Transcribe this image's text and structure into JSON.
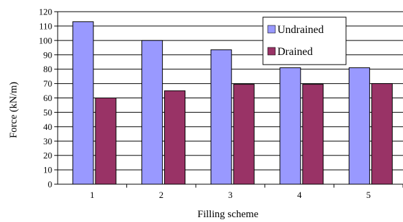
{
  "chart_data": {
    "type": "bar",
    "categories": [
      "1",
      "2",
      "3",
      "4",
      "5"
    ],
    "series": [
      {
        "name": "Undrained",
        "values": [
          113,
          100,
          93.5,
          81,
          81
        ],
        "color": "#9999ff"
      },
      {
        "name": "Drained",
        "values": [
          60,
          65,
          69.5,
          69.5,
          70
        ],
        "color": "#993366"
      }
    ],
    "xlabel": "Filling scheme",
    "ylabel": "Force (kN/m)",
    "ylim": [
      0,
      120
    ],
    "yticks": [
      "0",
      "10",
      "20",
      "30",
      "40",
      "50",
      "60",
      "70",
      "80",
      "90",
      "100",
      "110",
      "120"
    ],
    "grid": true,
    "legend_position": "top-right"
  }
}
